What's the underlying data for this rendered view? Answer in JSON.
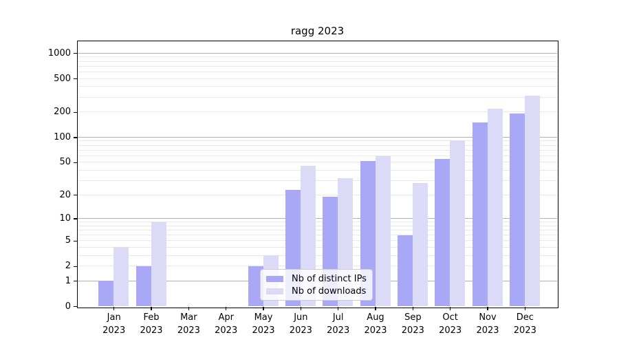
{
  "title": "ragg 2023",
  "chart_data": {
    "type": "bar",
    "title": "ragg 2023",
    "x_categories": [
      "Jan",
      "Feb",
      "Mar",
      "Apr",
      "May",
      "Jun",
      "Jul",
      "Aug",
      "Sep",
      "Oct",
      "Nov",
      "Dec"
    ],
    "x_year": "2023",
    "series": [
      {
        "name": "Nb of distinct IPs",
        "color": "#a8a8f6",
        "values": [
          1,
          2,
          0,
          0,
          2,
          23,
          19,
          52,
          6,
          55,
          150,
          190
        ]
      },
      {
        "name": "Nb of downloads",
        "color": "#dbdbf8",
        "values": [
          4,
          9,
          0,
          0,
          3,
          45,
          32,
          59,
          28,
          92,
          220,
          310
        ]
      }
    ],
    "yscale": "log1p",
    "ylim": [
      0,
      1400
    ],
    "yticks": [
      0,
      1,
      2,
      5,
      10,
      20,
      50,
      100,
      200,
      500,
      1000
    ],
    "grid_major": [
      1,
      10,
      100,
      1000
    ],
    "grid_minor": [
      2,
      3,
      4,
      5,
      6,
      7,
      8,
      9,
      20,
      30,
      40,
      50,
      60,
      70,
      80,
      90,
      200,
      300,
      400,
      500,
      600,
      700,
      800,
      900
    ],
    "grid": "on",
    "legend_position": "lower center"
  },
  "colors": {
    "bar_distinct_ips": "#a8a8f6",
    "bar_downloads": "#dbdbf8",
    "grid_major": "#b0b0b0",
    "grid_minor": "#e7e7e7",
    "spine": "#000000",
    "legend_border": "#cccccc"
  }
}
